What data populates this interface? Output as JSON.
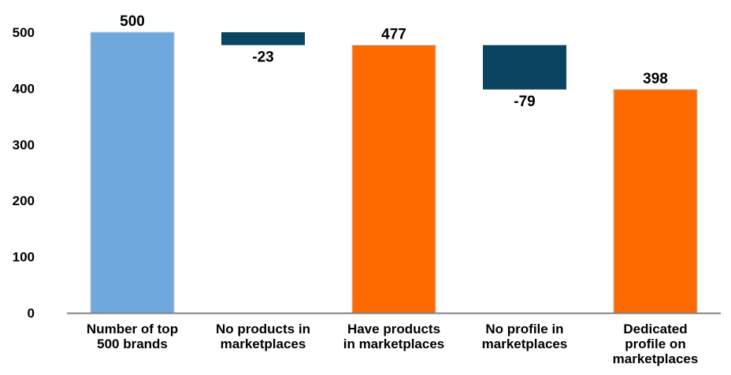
{
  "chart_data": {
    "type": "waterfall",
    "title": "",
    "xlabel": "",
    "ylabel": "",
    "ylim": [
      0,
      500
    ],
    "yticks": [
      0,
      100,
      200,
      300,
      400,
      500
    ],
    "grid": false,
    "categories": [
      [
        "Number of top",
        "500 brands"
      ],
      [
        "No products in",
        "marketplaces"
      ],
      [
        "Have products",
        "in marketplaces"
      ],
      [
        "No profile in",
        "marketplaces"
      ],
      [
        "Dedicated",
        "profile on",
        "marketplaces"
      ]
    ],
    "bars": [
      {
        "kind": "total",
        "start": 0,
        "end": 500,
        "label": "500",
        "color": "#6fa8dc"
      },
      {
        "kind": "delta",
        "start": 500,
        "end": 477,
        "label": "-23",
        "color": "#0b4461"
      },
      {
        "kind": "total",
        "start": 0,
        "end": 477,
        "label": "477",
        "color": "#ff6a00"
      },
      {
        "kind": "delta",
        "start": 477,
        "end": 398,
        "label": "-79",
        "color": "#0b4461"
      },
      {
        "kind": "total",
        "start": 0,
        "end": 398,
        "label": "398",
        "color": "#ff6a00"
      }
    ],
    "colors": {
      "axis": "#7f7f7f",
      "text": "#000000"
    }
  }
}
